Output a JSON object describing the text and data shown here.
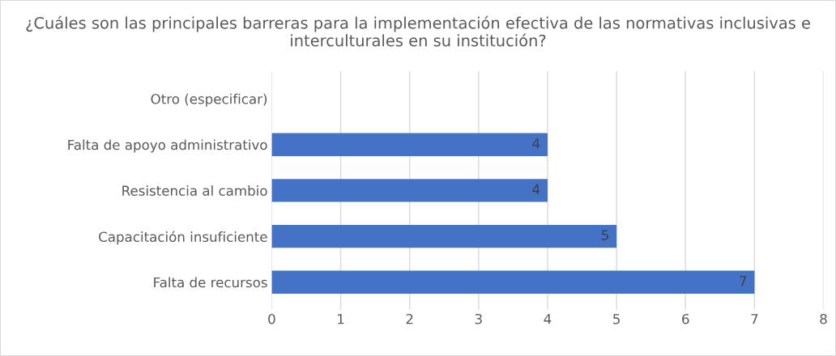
{
  "chart_data": {
    "type": "bar",
    "orientation": "horizontal",
    "title": "¿Cuáles son las principales barreras para la implementación efectiva de las normativas inclusivas e interculturales en su institución?",
    "categories": [
      "Otro (especificar)",
      "Falta de apoyo administrativo",
      "Resistencia al cambio",
      "Capacitación insuficiente",
      "Falta de recursos"
    ],
    "values": [
      null,
      4,
      4,
      5,
      7
    ],
    "color": "#4472c4",
    "xlim": [
      0,
      8
    ],
    "xticks": [
      0,
      1,
      2,
      3,
      4,
      5,
      6,
      7,
      8
    ],
    "grid": "x",
    "data_labels": true
  }
}
